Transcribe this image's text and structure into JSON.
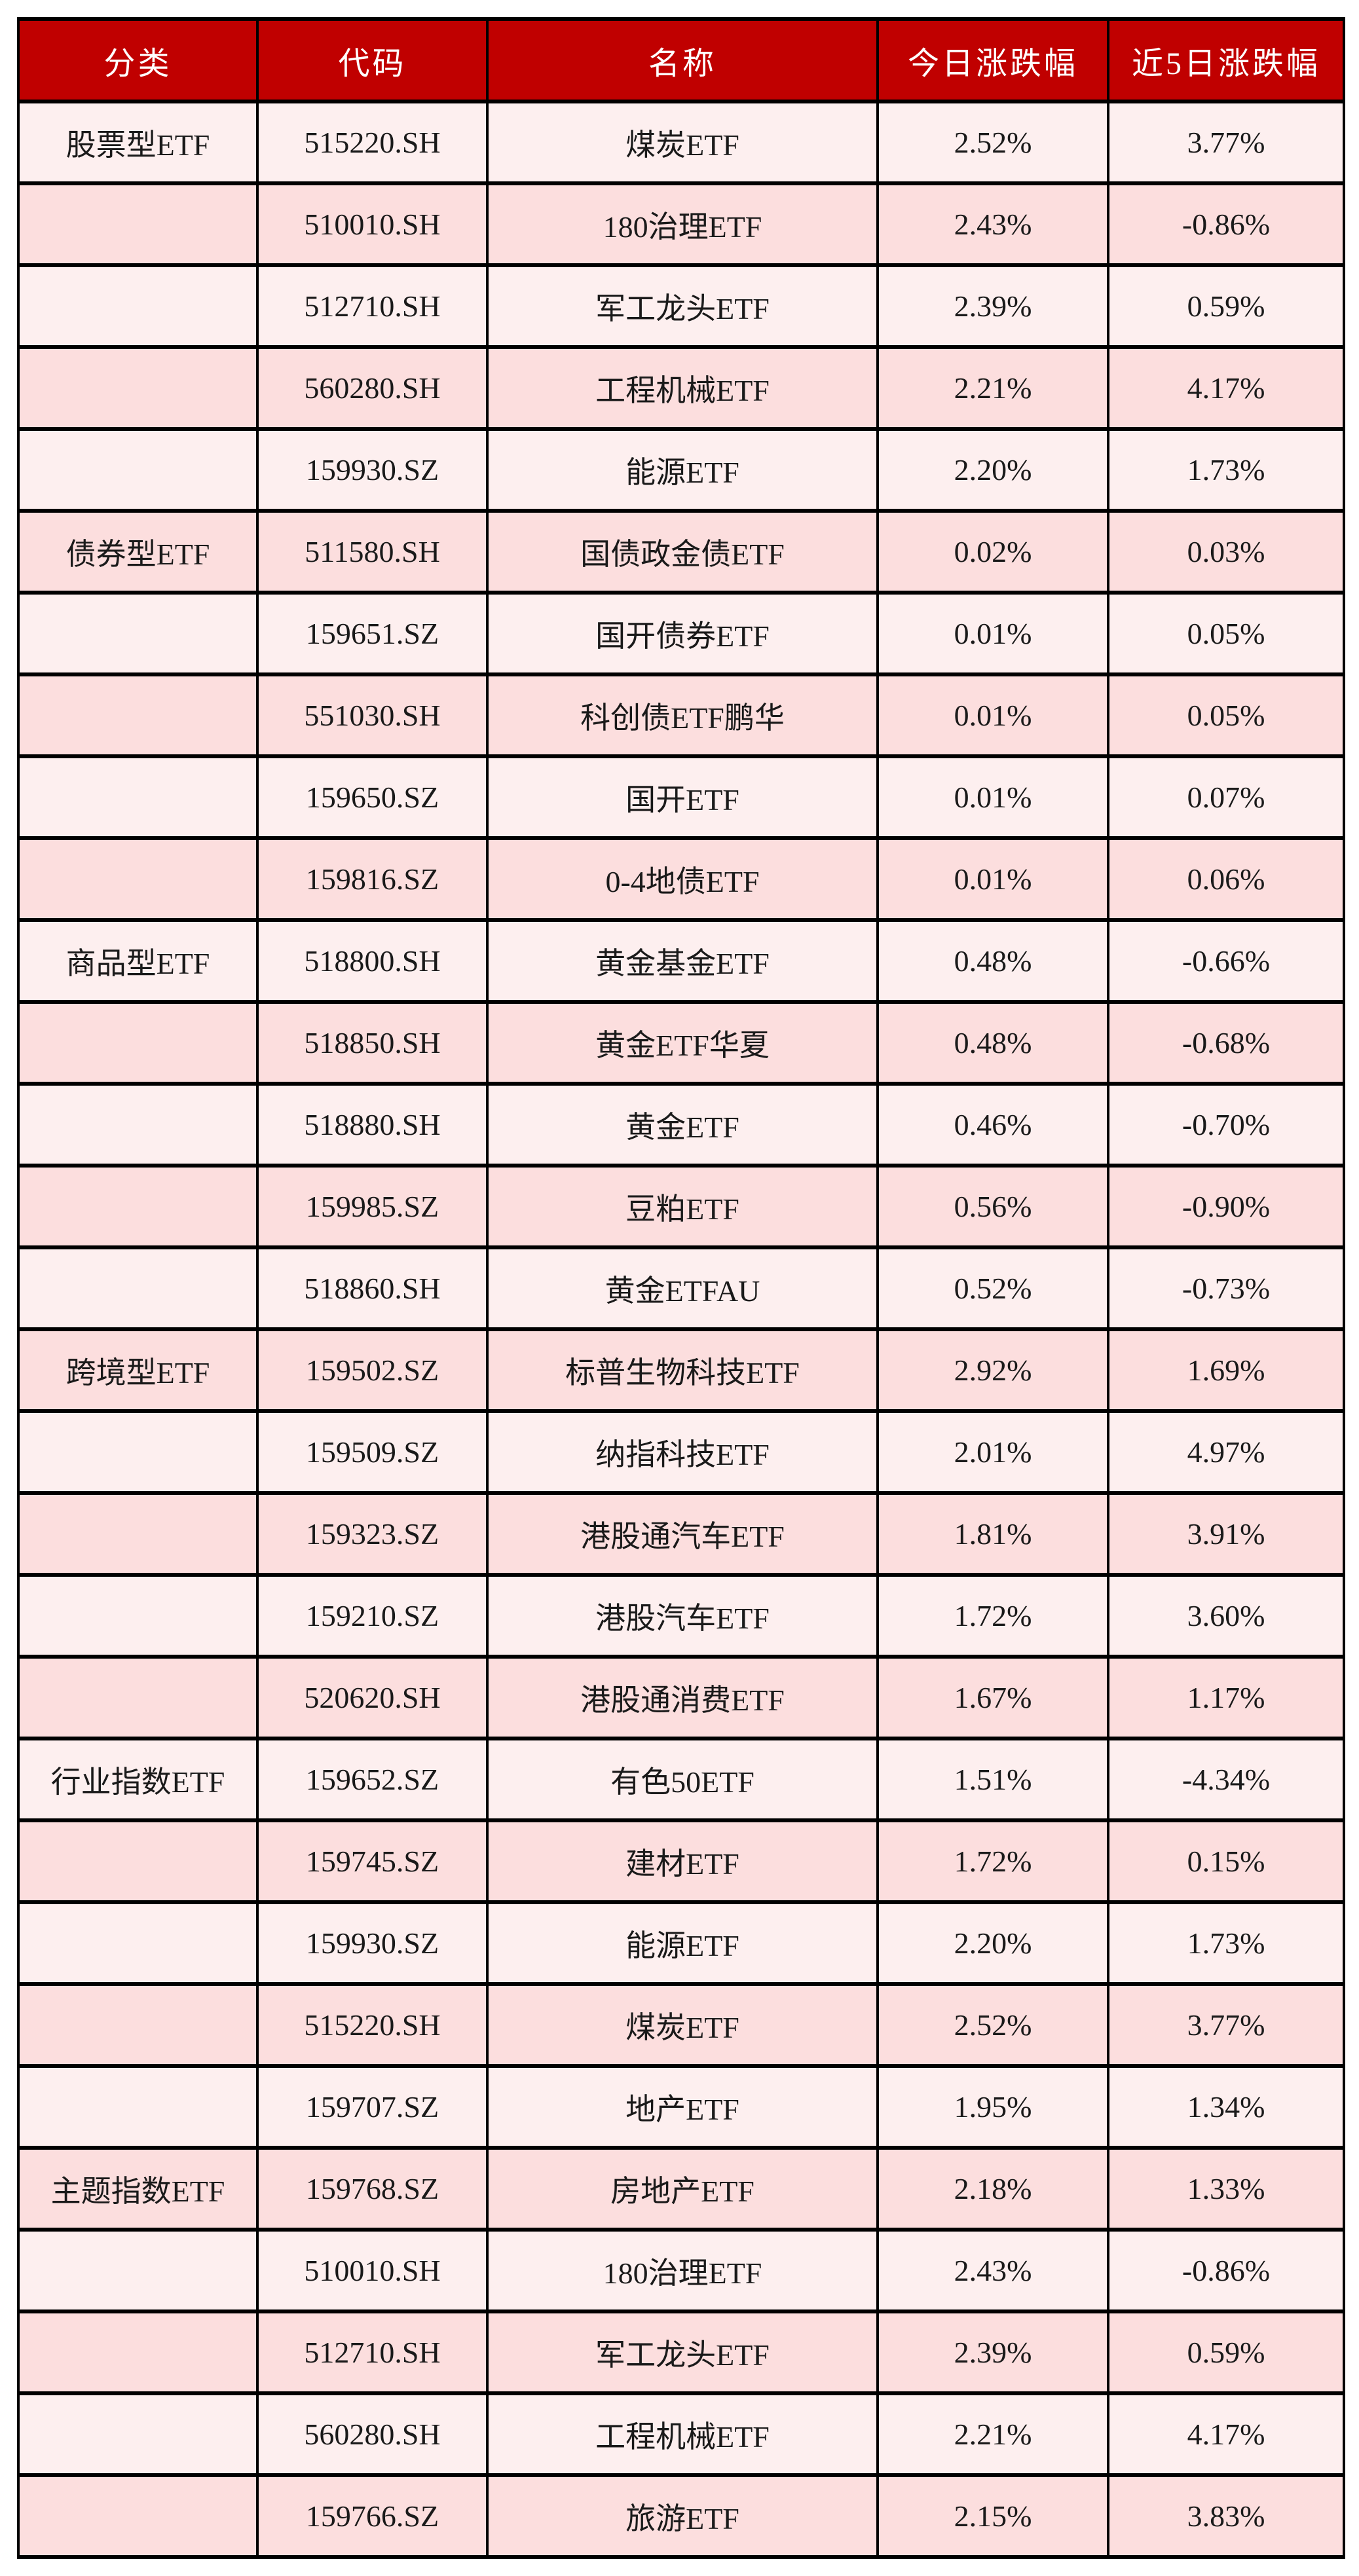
{
  "chart_data": {
    "type": "table",
    "columns": [
      "分类",
      "代码",
      "名称",
      "今日涨跌幅",
      "近5日涨跌幅"
    ],
    "rows": [
      {
        "category": "股票型ETF",
        "code": "515220.SH",
        "name": "煤炭ETF",
        "today_change": "2.52%",
        "five_day_change": "3.77%"
      },
      {
        "category": "",
        "code": "510010.SH",
        "name": "180治理ETF",
        "today_change": "2.43%",
        "five_day_change": "-0.86%"
      },
      {
        "category": "",
        "code": "512710.SH",
        "name": "军工龙头ETF",
        "today_change": "2.39%",
        "five_day_change": "0.59%"
      },
      {
        "category": "",
        "code": "560280.SH",
        "name": "工程机械ETF",
        "today_change": "2.21%",
        "five_day_change": "4.17%"
      },
      {
        "category": "",
        "code": "159930.SZ",
        "name": "能源ETF",
        "today_change": "2.20%",
        "five_day_change": "1.73%"
      },
      {
        "category": "债券型ETF",
        "code": "511580.SH",
        "name": "国债政金债ETF",
        "today_change": "0.02%",
        "five_day_change": "0.03%"
      },
      {
        "category": "",
        "code": "159651.SZ",
        "name": "国开债券ETF",
        "today_change": "0.01%",
        "five_day_change": "0.05%"
      },
      {
        "category": "",
        "code": "551030.SH",
        "name": "科创债ETF鹏华",
        "today_change": "0.01%",
        "five_day_change": "0.05%"
      },
      {
        "category": "",
        "code": "159650.SZ",
        "name": "国开ETF",
        "today_change": "0.01%",
        "five_day_change": "0.07%"
      },
      {
        "category": "",
        "code": "159816.SZ",
        "name": "0-4地债ETF",
        "today_change": "0.01%",
        "five_day_change": "0.06%"
      },
      {
        "category": "商品型ETF",
        "code": "518800.SH",
        "name": "黄金基金ETF",
        "today_change": "0.48%",
        "five_day_change": "-0.66%"
      },
      {
        "category": "",
        "code": "518850.SH",
        "name": "黄金ETF华夏",
        "today_change": "0.48%",
        "five_day_change": "-0.68%"
      },
      {
        "category": "",
        "code": "518880.SH",
        "name": "黄金ETF",
        "today_change": "0.46%",
        "five_day_change": "-0.70%"
      },
      {
        "category": "",
        "code": "159985.SZ",
        "name": "豆粕ETF",
        "today_change": "0.56%",
        "five_day_change": "-0.90%"
      },
      {
        "category": "",
        "code": "518860.SH",
        "name": "黄金ETFAU",
        "today_change": "0.52%",
        "five_day_change": "-0.73%"
      },
      {
        "category": "跨境型ETF",
        "code": "159502.SZ",
        "name": "标普生物科技ETF",
        "today_change": "2.92%",
        "five_day_change": "1.69%"
      },
      {
        "category": "",
        "code": "159509.SZ",
        "name": "纳指科技ETF",
        "today_change": "2.01%",
        "five_day_change": "4.97%"
      },
      {
        "category": "",
        "code": "159323.SZ",
        "name": "港股通汽车ETF",
        "today_change": "1.81%",
        "five_day_change": "3.91%"
      },
      {
        "category": "",
        "code": "159210.SZ",
        "name": "港股汽车ETF",
        "today_change": "1.72%",
        "five_day_change": "3.60%"
      },
      {
        "category": "",
        "code": "520620.SH",
        "name": "港股通消费ETF",
        "today_change": "1.67%",
        "five_day_change": "1.17%"
      },
      {
        "category": "行业指数ETF",
        "code": "159652.SZ",
        "name": "有色50ETF",
        "today_change": "1.51%",
        "five_day_change": "-4.34%"
      },
      {
        "category": "",
        "code": "159745.SZ",
        "name": "建材ETF",
        "today_change": "1.72%",
        "five_day_change": "0.15%"
      },
      {
        "category": "",
        "code": "159930.SZ",
        "name": "能源ETF",
        "today_change": "2.20%",
        "five_day_change": "1.73%"
      },
      {
        "category": "",
        "code": "515220.SH",
        "name": "煤炭ETF",
        "today_change": "2.52%",
        "five_day_change": "3.77%"
      },
      {
        "category": "",
        "code": "159707.SZ",
        "name": "地产ETF",
        "today_change": "1.95%",
        "five_day_change": "1.34%"
      },
      {
        "category": "主题指数ETF",
        "code": "159768.SZ",
        "name": "房地产ETF",
        "today_change": "2.18%",
        "five_day_change": "1.33%"
      },
      {
        "category": "",
        "code": "510010.SH",
        "name": "180治理ETF",
        "today_change": "2.43%",
        "five_day_change": "-0.86%"
      },
      {
        "category": "",
        "code": "512710.SH",
        "name": "军工龙头ETF",
        "today_change": "2.39%",
        "five_day_change": "0.59%"
      },
      {
        "category": "",
        "code": "560280.SH",
        "name": "工程机械ETF",
        "today_change": "2.21%",
        "five_day_change": "4.17%"
      },
      {
        "category": "",
        "code": "159766.SZ",
        "name": "旅游ETF",
        "today_change": "2.15%",
        "five_day_change": "3.83%"
      }
    ]
  },
  "colors": {
    "header_bg": "#C00000",
    "header_text": "#FFFFFF",
    "row_light_bg": "#FDEFEF",
    "row_dark_bg": "#FCDEDE",
    "border": "#000000",
    "cell_text": "#1A1A1A"
  }
}
